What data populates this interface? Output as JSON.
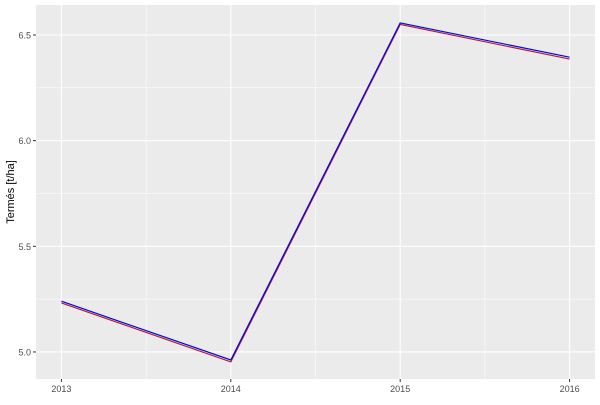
{
  "chart_data": {
    "type": "line",
    "title": "",
    "xlabel": "",
    "ylabel": "Termés [t/ha]",
    "x": [
      2013,
      2014,
      2015,
      2016
    ],
    "x_tick_labels": [
      "2013",
      "2014",
      "2015",
      "2016"
    ],
    "y_ticks": [
      5.0,
      5.5,
      6.0,
      6.5
    ],
    "y_tick_labels": [
      "5.0",
      "5.5",
      "6.0",
      "6.5"
    ],
    "xlim": [
      2012.85,
      2016.15
    ],
    "ylim": [
      4.872,
      6.642
    ],
    "grid": true,
    "legend": "none",
    "background": "#EBEBEB",
    "series": [
      {
        "color": "#B22222",
        "values": [
          5.232,
          4.953,
          6.55,
          6.386
        ]
      },
      {
        "color": "#0000FF",
        "values": [
          5.24,
          4.962,
          6.557,
          6.395
        ]
      }
    ]
  }
}
